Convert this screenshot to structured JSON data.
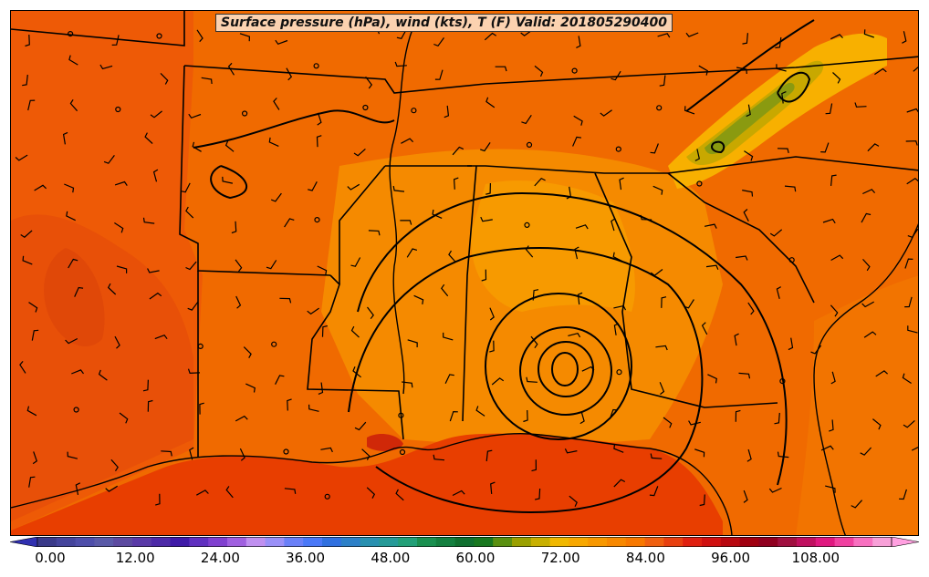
{
  "title": "Surface pressure (hPa), wind (kts), T (F) Valid: 201805290400",
  "colorbar": {
    "ticks": [
      "0.00",
      "12.00",
      "24.00",
      "36.00",
      "48.00",
      "60.00",
      "72.00",
      "84.00",
      "96.00",
      "108.00"
    ],
    "colors": [
      "#3a3a8a",
      "#44449c",
      "#4e4eaa",
      "#5a5aa8",
      "#5c4aa0",
      "#5a3aa8",
      "#4d2aa8",
      "#3f1aa8",
      "#6030c0",
      "#8040d0",
      "#a060e0",
      "#c090f0",
      "#9a90f8",
      "#6a80f8",
      "#4a78f8",
      "#3070e0",
      "#2c80c8",
      "#2890b0",
      "#259a98",
      "#22a078",
      "#1a9050",
      "#148040",
      "#107030",
      "#187820",
      "#5a9010",
      "#9aa000",
      "#c8b000",
      "#f0b800",
      "#f8a800",
      "#f89800",
      "#f88800",
      "#f87800",
      "#f06010",
      "#e84010",
      "#e02010",
      "#d01010",
      "#b80810",
      "#a00010",
      "#900020",
      "#a01040",
      "#c01060",
      "#e01880",
      "#f040a0",
      "#f870c0",
      "#f8a0d8"
    ],
    "min_color": "#3030b0",
    "max_color": "#ffa0e0"
  },
  "map": {
    "background_color": "#f57400",
    "regions": "Southeastern United States"
  }
}
